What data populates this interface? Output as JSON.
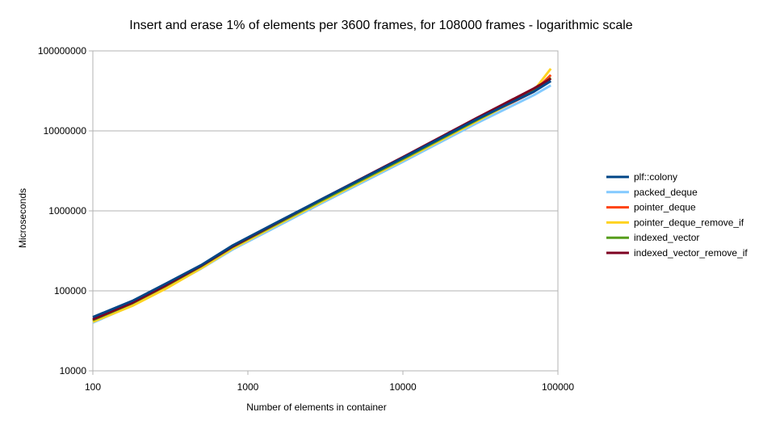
{
  "chart_data": {
    "type": "line",
    "title": "Insert and erase 1% of elements per 3600 frames, for 108000 frames - logarithmic scale",
    "xlabel": "Number of elements in container",
    "ylabel": "Microseconds",
    "x_scale": "log",
    "y_scale": "log",
    "xlim": [
      100,
      100000
    ],
    "ylim": [
      10000,
      100000000
    ],
    "x_ticks": [
      "100",
      "1000",
      "10000",
      "100000"
    ],
    "y_ticks": [
      "10000",
      "100000",
      "1000000",
      "10000000",
      "100000000"
    ],
    "grid": "horizontal",
    "legend": "right",
    "series": [
      {
        "name": "plf::colony",
        "color": "#004586",
        "points": [
          [
            100,
            47000
          ],
          [
            180,
            75000
          ],
          [
            300,
            125000
          ],
          [
            500,
            210000
          ],
          [
            800,
            370000
          ],
          [
            1500,
            700000
          ],
          [
            3000,
            1400000
          ],
          [
            10000,
            4600000
          ],
          [
            30000,
            14000000
          ],
          [
            70000,
            31000000
          ],
          [
            90000,
            42000000
          ]
        ]
      },
      {
        "name": "packed_deque",
        "color": "#83caff",
        "points": [
          [
            100,
            40000
          ],
          [
            180,
            66000
          ],
          [
            300,
            110000
          ],
          [
            500,
            190000
          ],
          [
            800,
            330000
          ],
          [
            1500,
            620000
          ],
          [
            3000,
            1250000
          ],
          [
            10000,
            4100000
          ],
          [
            30000,
            12500000
          ],
          [
            70000,
            28000000
          ],
          [
            90000,
            37000000
          ]
        ]
      },
      {
        "name": "pointer_deque",
        "color": "#ff420e",
        "points": [
          [
            100,
            42000
          ],
          [
            180,
            69000
          ],
          [
            300,
            115000
          ],
          [
            500,
            200000
          ],
          [
            800,
            350000
          ],
          [
            1500,
            660000
          ],
          [
            3000,
            1320000
          ],
          [
            10000,
            4400000
          ],
          [
            30000,
            13500000
          ],
          [
            70000,
            31000000
          ],
          [
            90000,
            50000000
          ]
        ]
      },
      {
        "name": "pointer_deque_remove_if",
        "color": "#ffd320",
        "points": [
          [
            100,
            41000
          ],
          [
            180,
            65000
          ],
          [
            300,
            108000
          ],
          [
            500,
            192000
          ],
          [
            800,
            340000
          ],
          [
            1500,
            650000
          ],
          [
            3000,
            1300000
          ],
          [
            10000,
            4300000
          ],
          [
            30000,
            13200000
          ],
          [
            70000,
            32000000
          ],
          [
            90000,
            60000000
          ]
        ]
      },
      {
        "name": "indexed_vector",
        "color": "#579d1c",
        "points": [
          [
            100,
            43000
          ],
          [
            180,
            70000
          ],
          [
            300,
            117000
          ],
          [
            500,
            203000
          ],
          [
            800,
            355000
          ],
          [
            1500,
            670000
          ],
          [
            3000,
            1350000
          ],
          [
            10000,
            4450000
          ],
          [
            30000,
            13700000
          ],
          [
            70000,
            32000000
          ],
          [
            90000,
            46000000
          ]
        ]
      },
      {
        "name": "indexed_vector_remove_if",
        "color": "#7e0021",
        "points": [
          [
            100,
            44000
          ],
          [
            180,
            71000
          ],
          [
            300,
            119000
          ],
          [
            500,
            206000
          ],
          [
            800,
            360000
          ],
          [
            1500,
            690000
          ],
          [
            3000,
            1400000
          ],
          [
            10000,
            4700000
          ],
          [
            30000,
            14500000
          ],
          [
            70000,
            34000000
          ],
          [
            90000,
            45000000
          ]
        ]
      }
    ]
  }
}
